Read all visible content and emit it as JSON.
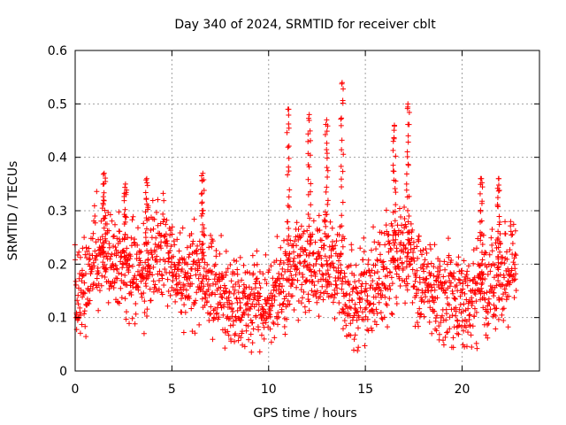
{
  "chart_data": {
    "type": "scatter",
    "title": "Day 340 of 2024, SRMTID for receiver cblt",
    "xlabel": "GPS time / hours",
    "ylabel": "SRMTID / TECUs",
    "xlim": [
      0,
      24
    ],
    "ylim": [
      0,
      0.6
    ],
    "xticks": [
      0,
      5,
      10,
      15,
      20
    ],
    "xtick_labels": [
      "0",
      "5",
      "10",
      "15",
      "20"
    ],
    "yticks": [
      0,
      0.1,
      0.2,
      0.3,
      0.4,
      0.5,
      0.6
    ],
    "ytick_labels": [
      "0",
      "0.1",
      "0.2",
      "0.3",
      "0.4",
      "0.5",
      "0.6"
    ],
    "grid": true,
    "marker": "plus",
    "marker_color": "#ff0000",
    "x_data_range": [
      0,
      22.8
    ],
    "series": [
      {
        "name": "SRMTID",
        "trend_x": [
          0,
          0.5,
          1,
          1.5,
          2,
          2.5,
          3,
          3.5,
          4,
          4.5,
          5,
          5.5,
          6,
          6.5,
          7,
          7.5,
          8,
          8.5,
          9,
          9.5,
          10,
          10.5,
          11,
          11.5,
          12,
          12.5,
          13,
          13.5,
          14,
          14.5,
          15,
          15.5,
          16,
          16.5,
          17,
          17.5,
          18,
          18.5,
          19,
          19.5,
          20,
          20.5,
          21,
          21.5,
          22,
          22.5
        ],
        "trend_y": [
          0.14,
          0.17,
          0.21,
          0.22,
          0.2,
          0.19,
          0.18,
          0.17,
          0.21,
          0.22,
          0.19,
          0.17,
          0.18,
          0.2,
          0.17,
          0.14,
          0.13,
          0.12,
          0.11,
          0.12,
          0.14,
          0.14,
          0.17,
          0.2,
          0.2,
          0.19,
          0.2,
          0.19,
          0.14,
          0.13,
          0.14,
          0.16,
          0.19,
          0.21,
          0.22,
          0.2,
          0.17,
          0.15,
          0.15,
          0.14,
          0.12,
          0.12,
          0.15,
          0.16,
          0.17,
          0.19
        ],
        "spikes": [
          {
            "x": 1.5,
            "y": 0.37
          },
          {
            "x": 2.6,
            "y": 0.35
          },
          {
            "x": 3.7,
            "y": 0.36
          },
          {
            "x": 6.6,
            "y": 0.37
          },
          {
            "x": 11.0,
            "y": 0.49
          },
          {
            "x": 12.1,
            "y": 0.48
          },
          {
            "x": 13.0,
            "y": 0.47
          },
          {
            "x": 13.8,
            "y": 0.54
          },
          {
            "x": 16.5,
            "y": 0.46
          },
          {
            "x": 17.2,
            "y": 0.5
          },
          {
            "x": 21.0,
            "y": 0.36
          },
          {
            "x": 21.9,
            "y": 0.36
          }
        ]
      }
    ]
  }
}
